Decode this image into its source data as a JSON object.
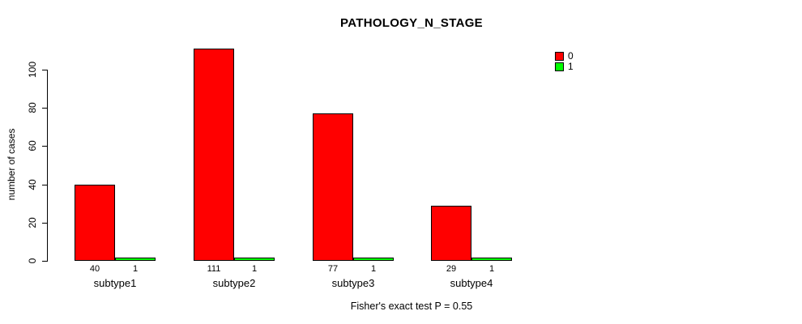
{
  "chart_data": {
    "type": "bar",
    "title": "PATHOLOGY_N_STAGE",
    "xlabel": "",
    "ylabel": "number of cases",
    "categories": [
      "subtype1",
      "subtype2",
      "subtype3",
      "subtype4"
    ],
    "series": [
      {
        "name": "0",
        "color": "#ff0000",
        "values": [
          40,
          111,
          77,
          29
        ]
      },
      {
        "name": "1",
        "color": "#00ff00",
        "values": [
          1,
          1,
          1,
          1
        ]
      }
    ],
    "ylim": [
      0,
      100
    ],
    "yticks": [
      0,
      20,
      40,
      60,
      80,
      100
    ],
    "bar_value_labels": true,
    "grid": false,
    "legend_position": "top-right",
    "annotation": "Fisher's exact test P = 0.55"
  }
}
